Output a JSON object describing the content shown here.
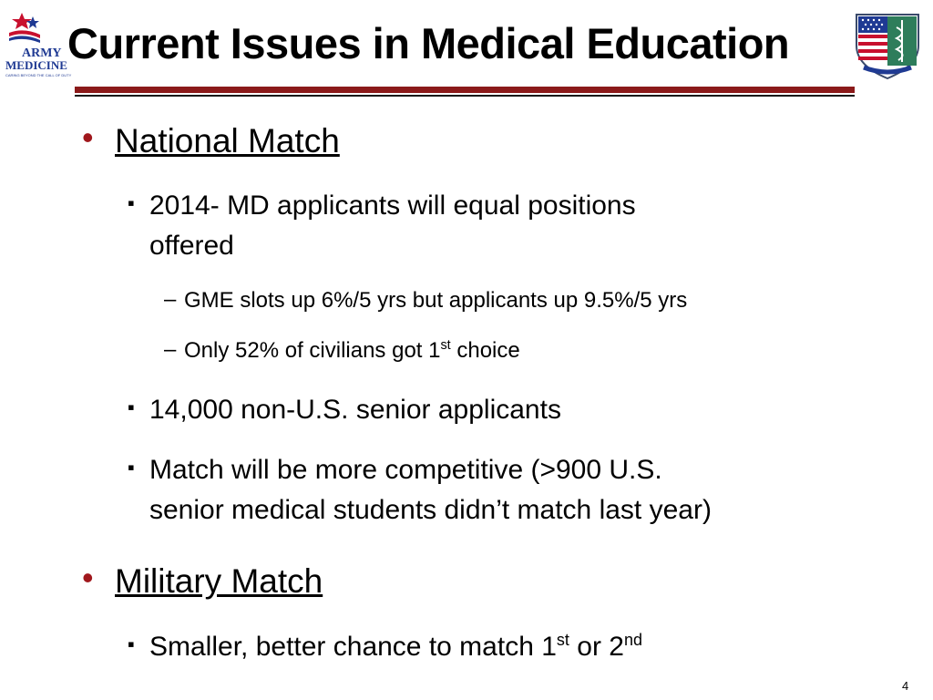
{
  "slide": {
    "title": "Current Issues in Medical Education",
    "page_number": "4",
    "logo_left": {
      "line1": "ARMY",
      "line2": "MEDICINE",
      "tagline": "CARING BEYOND THE CALL OF DUTY"
    },
    "logo_right": {
      "name": "shield-crest-icon"
    },
    "colors": {
      "accent_red": "#a0171c",
      "rule_red": "#8b1a1a"
    }
  },
  "content": {
    "national_match": {
      "heading": "National Match",
      "item1_line1": "2014- MD applicants will equal positions",
      "item1_line2": "offered",
      "sub1": "GME slots up 6%/5 yrs but applicants up 9.5%/5 yrs",
      "sub2_pre": "Only 52% of civilians got 1",
      "sub2_sup": "st",
      "sub2_post": " choice",
      "item2": "14,000 non-U.S. senior applicants",
      "item3_line1": "Match will be more competitive (>900 U.S.",
      "item3_line2": "senior medical students didn’t match last year)"
    },
    "military_match": {
      "heading": "Military Match",
      "item1_pre": "Smaller, better chance to match 1",
      "item1_sup1": "st",
      "item1_mid": " or 2",
      "item1_sup2": "nd"
    }
  }
}
